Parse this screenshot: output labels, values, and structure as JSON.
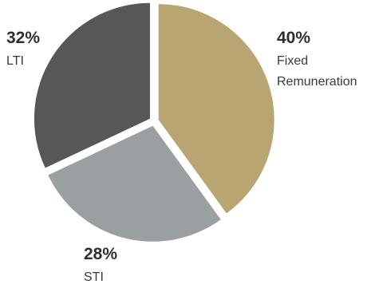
{
  "chart_data": {
    "type": "pie",
    "title": "",
    "slices": [
      {
        "name": "Fixed Remuneration",
        "label_lines": [
          "Fixed",
          "Remuneration"
        ],
        "value": 40,
        "value_label": "40%",
        "color": "#b8a572"
      },
      {
        "name": "STI",
        "label_lines": [
          "STI"
        ],
        "value": 28,
        "value_label": "28%",
        "color": "#9a9fa1"
      },
      {
        "name": "LTI",
        "label_lines": [
          "LTI"
        ],
        "value": 32,
        "value_label": "32%",
        "color": "#565759"
      }
    ],
    "start": "top",
    "direction": "clockwise",
    "legend": "none"
  }
}
